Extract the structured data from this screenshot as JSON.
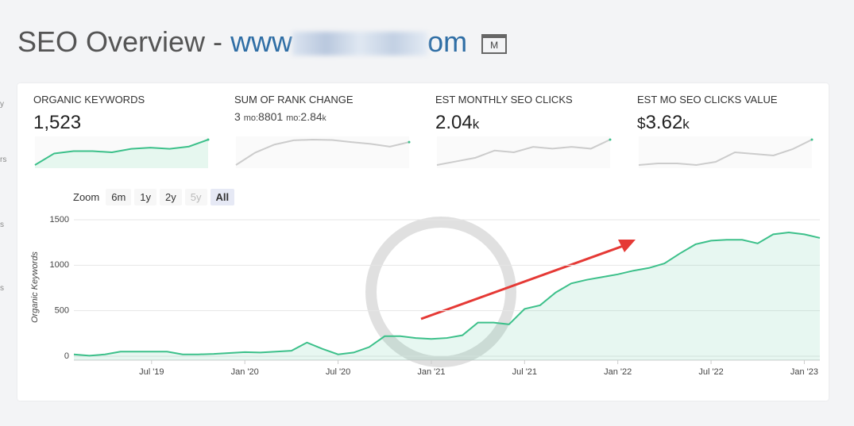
{
  "header": {
    "title": "SEO Overview - ",
    "url_start": "www",
    "url_end": "om",
    "badge": "M"
  },
  "sidebar": [
    "y",
    "rs",
    "s",
    "s"
  ],
  "metrics": [
    {
      "label": "ORGANIC KEYWORDS",
      "value": "1,523",
      "sparkline": [
        60,
        70,
        72,
        72,
        71,
        74,
        75,
        74,
        76,
        82
      ],
      "color": "#3cc08a",
      "filled": true
    },
    {
      "label": "SUM OF RANK CHANGE",
      "prefix": "3",
      "p1": "mo:",
      "v1": "8801",
      "p2": "mo:",
      "v2": "2.84",
      "unit": "k",
      "sparkline": [
        20,
        55,
        78,
        90,
        92,
        91,
        85,
        80,
        72,
        85
      ],
      "color": "#cccccc",
      "filled": false
    },
    {
      "label": "EST MONTHLY SEO CLICKS",
      "value": "2.04",
      "unit": "k",
      "sparkline": [
        70,
        72,
        74,
        78,
        77,
        80,
        79,
        80,
        79,
        84
      ],
      "color": "#cccccc",
      "filled": false
    },
    {
      "label": "EST MO SEO CLICKS VALUE",
      "currency": "$",
      "value": "3.62",
      "unit": "k",
      "sparkline": [
        70,
        71,
        71,
        70,
        72,
        78,
        77,
        76,
        80,
        86
      ],
      "color": "#cccccc",
      "filled": false
    }
  ],
  "zoom": {
    "label": "Zoom",
    "buttons": [
      "6m",
      "1y",
      "2y",
      "5y",
      "All"
    ],
    "selected": 4,
    "disabled": 3
  },
  "chart_data": {
    "type": "area",
    "y_label": "Organic Keywords",
    "color": "#3cc08a",
    "x": [
      "2019-02",
      "2019-03",
      "2019-04",
      "2019-05",
      "2019-06",
      "2019-07",
      "2019-08",
      "2019-09",
      "2019-10",
      "2019-11",
      "2019-12",
      "2020-01",
      "2020-02",
      "2020-03",
      "2020-04",
      "2020-05",
      "2020-06",
      "2020-07",
      "2020-08",
      "2020-09",
      "2020-10",
      "2020-11",
      "2020-12",
      "2021-01",
      "2021-02",
      "2021-03",
      "2021-04",
      "2021-05",
      "2021-06",
      "2021-07",
      "2021-08",
      "2021-09",
      "2021-10",
      "2021-11",
      "2021-12",
      "2022-01",
      "2022-02",
      "2022-03",
      "2022-04",
      "2022-05",
      "2022-06",
      "2022-07",
      "2022-08",
      "2022-09",
      "2022-10",
      "2022-11",
      "2022-12",
      "2023-01",
      "2023-02"
    ],
    "values": [
      20,
      5,
      20,
      50,
      50,
      50,
      50,
      20,
      20,
      25,
      35,
      45,
      40,
      50,
      60,
      150,
      80,
      20,
      40,
      100,
      220,
      220,
      200,
      190,
      200,
      230,
      370,
      370,
      350,
      520,
      560,
      700,
      800,
      840,
      870,
      900,
      940,
      970,
      1020,
      1130,
      1230,
      1270,
      1280,
      1280,
      1240,
      1340,
      1360,
      1340,
      1300
    ],
    "xlim": [
      "2019-02",
      "2023-02"
    ],
    "xticks": [
      {
        "value": "2019-07",
        "label": "Jul '19"
      },
      {
        "value": "2020-01",
        "label": "Jan '20"
      },
      {
        "value": "2020-07",
        "label": "Jul '20"
      },
      {
        "value": "2021-01",
        "label": "Jan '21"
      },
      {
        "value": "2021-07",
        "label": "Jul '21"
      },
      {
        "value": "2022-01",
        "label": "Jan '22"
      },
      {
        "value": "2022-07",
        "label": "Jul '22"
      },
      {
        "value": "2023-01",
        "label": "Jan '23"
      }
    ],
    "ylim": [
      0,
      1500
    ],
    "yticks": [
      0,
      500,
      1000,
      1500
    ],
    "grid": true
  }
}
